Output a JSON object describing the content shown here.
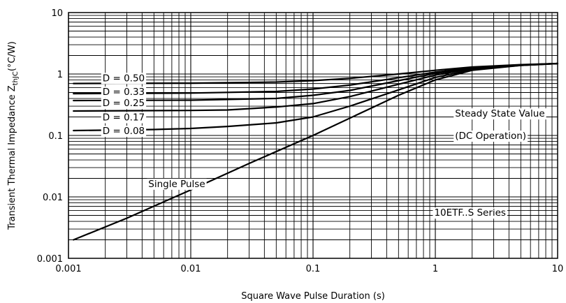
{
  "chart_data": {
    "type": "line",
    "title": "",
    "xlabel": "Square Wave Pulse Duration (s)",
    "ylabel": "Transient Thermal Impedance Z",
    "ylabel_subscript": "thJC",
    "ylabel_unit": "(°C/W)",
    "x_scale": "log",
    "y_scale": "log",
    "xlim": [
      0.001,
      10
    ],
    "ylim": [
      0.001,
      10
    ],
    "grid": true,
    "x_ticks": [
      {
        "value": 0.001,
        "label": "0.001"
      },
      {
        "value": 0.01,
        "label": "0.01"
      },
      {
        "value": 0.1,
        "label": "0.1"
      },
      {
        "value": 1,
        "label": "1"
      },
      {
        "value": 10,
        "label": "10"
      }
    ],
    "y_ticks": [
      {
        "value": 10,
        "label": "10"
      },
      {
        "value": 1,
        "label": "1"
      },
      {
        "value": 0.1,
        "label": "0.1"
      },
      {
        "value": 0.01,
        "label": "0.01"
      },
      {
        "value": 0.001,
        "label": "0.001"
      }
    ],
    "series": [
      {
        "name": "D = 0.50",
        "x": [
          0.0011,
          0.01,
          0.05,
          0.1,
          0.2,
          0.5,
          1,
          2,
          5,
          10
        ],
        "y": [
          0.7,
          0.71,
          0.74,
          0.78,
          0.85,
          1.0,
          1.15,
          1.3,
          1.42,
          1.48
        ]
      },
      {
        "name": "D = 0.33",
        "x": [
          0.0011,
          0.01,
          0.05,
          0.1,
          0.2,
          0.5,
          1,
          2,
          5,
          10
        ],
        "y": [
          0.48,
          0.49,
          0.52,
          0.57,
          0.66,
          0.87,
          1.07,
          1.27,
          1.41,
          1.48
        ]
      },
      {
        "name": "D = 0.25",
        "x": [
          0.0011,
          0.01,
          0.05,
          0.1,
          0.2,
          0.5,
          1,
          2,
          5,
          10
        ],
        "y": [
          0.37,
          0.375,
          0.4,
          0.45,
          0.54,
          0.78,
          1.02,
          1.25,
          1.4,
          1.48
        ]
      },
      {
        "name": "D = 0.17",
        "x": [
          0.0011,
          0.01,
          0.02,
          0.05,
          0.1,
          0.2,
          0.5,
          1,
          2,
          5,
          10
        ],
        "y": [
          0.25,
          0.255,
          0.26,
          0.29,
          0.33,
          0.43,
          0.68,
          0.96,
          1.22,
          1.39,
          1.48
        ]
      },
      {
        "name": "D = 0.08",
        "x": [
          0.0011,
          0.005,
          0.01,
          0.02,
          0.05,
          0.1,
          0.2,
          0.5,
          1,
          2,
          5,
          10
        ],
        "y": [
          0.12,
          0.125,
          0.13,
          0.14,
          0.16,
          0.2,
          0.3,
          0.55,
          0.88,
          1.18,
          1.38,
          1.48
        ]
      },
      {
        "name": "Single Pulse",
        "x": [
          0.0011,
          0.003,
          0.01,
          0.03,
          0.1,
          0.3,
          0.5,
          1,
          2,
          5,
          10
        ],
        "y": [
          0.002,
          0.0045,
          0.013,
          0.035,
          0.1,
          0.28,
          0.45,
          0.8,
          1.15,
          1.38,
          1.48
        ]
      }
    ],
    "annotations": [
      {
        "text": "D = 0.50",
        "x": 0.0019,
        "y": 0.87
      },
      {
        "text": "D = 0.33",
        "x": 0.0019,
        "y": 0.52
      },
      {
        "text": "D = 0.25",
        "x": 0.0019,
        "y": 0.34
      },
      {
        "text": "D = 0.17",
        "x": 0.0019,
        "y": 0.2
      },
      {
        "text": "D = 0.08",
        "x": 0.0019,
        "y": 0.12
      },
      {
        "text": "Single Pulse",
        "x": 0.0045,
        "y": 0.0165
      },
      {
        "text": "Steady State Value",
        "x": 1.45,
        "y": 0.23
      },
      {
        "text": "(DC Operation)",
        "x": 1.45,
        "y": 0.1
      },
      {
        "text": "10ETF..S Series",
        "x": 0.98,
        "y": 0.0056
      }
    ]
  }
}
